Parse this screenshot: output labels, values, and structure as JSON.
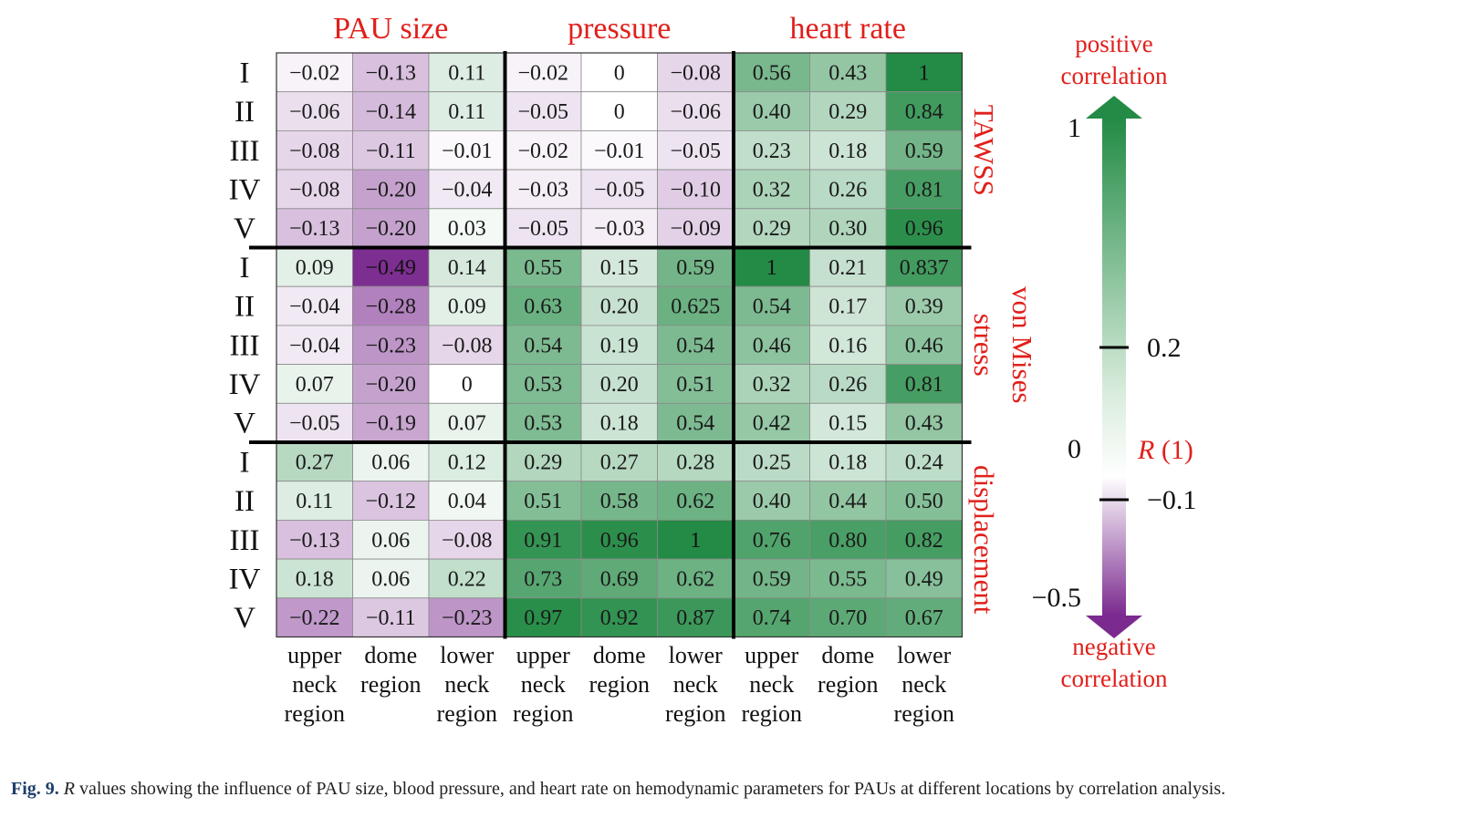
{
  "chart_data": {
    "type": "heatmap",
    "column_groups": [
      "PAU size",
      "pressure",
      "heart rate"
    ],
    "column_labels": [
      [
        "upper",
        "neck",
        "region"
      ],
      [
        "dome",
        "region"
      ],
      [
        "lower",
        "neck",
        "region"
      ],
      [
        "upper",
        "neck",
        "region"
      ],
      [
        "dome",
        "region"
      ],
      [
        "lower",
        "neck",
        "region"
      ],
      [
        "upper",
        "neck",
        "region"
      ],
      [
        "dome",
        "region"
      ],
      [
        "lower",
        "neck",
        "region"
      ]
    ],
    "row_groups": [
      {
        "name_lines": [
          "TAWSS"
        ],
        "rows": [
          "I",
          "II",
          "III",
          "IV",
          "V"
        ]
      },
      {
        "name_lines": [
          "von Mises",
          "stress"
        ],
        "rows": [
          "I",
          "II",
          "III",
          "IV",
          "V"
        ]
      },
      {
        "name_lines": [
          "displacement"
        ],
        "rows": [
          "I",
          "II",
          "III",
          "IV",
          "V"
        ]
      }
    ],
    "values": [
      [
        "−0.02",
        "−0.13",
        "0.11",
        "−0.02",
        "0",
        "−0.08",
        "0.56",
        "0.43",
        "1"
      ],
      [
        "−0.06",
        "−0.14",
        "0.11",
        "−0.05",
        "0",
        "−0.06",
        "0.40",
        "0.29",
        "0.84"
      ],
      [
        "−0.08",
        "−0.11",
        "−0.01",
        "−0.02",
        "−0.01",
        "−0.05",
        "0.23",
        "0.18",
        "0.59"
      ],
      [
        "−0.08",
        "−0.20",
        "−0.04",
        "−0.03",
        "−0.05",
        "−0.10",
        "0.32",
        "0.26",
        "0.81"
      ],
      [
        "−0.13",
        "−0.20",
        "0.03",
        "−0.05",
        "−0.03",
        "−0.09",
        "0.29",
        "0.30",
        "0.96"
      ],
      [
        "0.09",
        "−0.49",
        "0.14",
        "0.55",
        "0.15",
        "0.59",
        "1",
        "0.21",
        "0.837"
      ],
      [
        "−0.04",
        "−0.28",
        "0.09",
        "0.63",
        "0.20",
        "0.625",
        "0.54",
        "0.17",
        "0.39"
      ],
      [
        "−0.04",
        "−0.23",
        "−0.08",
        "0.54",
        "0.19",
        "0.54",
        "0.46",
        "0.16",
        "0.46"
      ],
      [
        "0.07",
        "−0.20",
        "0",
        "0.53",
        "0.20",
        "0.51",
        "0.32",
        "0.26",
        "0.81"
      ],
      [
        "−0.05",
        "−0.19",
        "0.07",
        "0.53",
        "0.18",
        "0.54",
        "0.42",
        "0.15",
        "0.43"
      ],
      [
        "0.27",
        "0.06",
        "0.12",
        "0.29",
        "0.27",
        "0.28",
        "0.25",
        "0.18",
        "0.24"
      ],
      [
        "0.11",
        "−0.12",
        "0.04",
        "0.51",
        "0.58",
        "0.62",
        "0.40",
        "0.44",
        "0.50"
      ],
      [
        "−0.13",
        "0.06",
        "−0.08",
        "0.91",
        "0.96",
        "1",
        "0.76",
        "0.80",
        "0.82"
      ],
      [
        "0.18",
        "0.06",
        "0.22",
        "0.73",
        "0.69",
        "0.62",
        "0.59",
        "0.55",
        "0.49"
      ],
      [
        "−0.22",
        "−0.11",
        "−0.23",
        "0.97",
        "0.92",
        "0.87",
        "0.74",
        "0.70",
        "0.67"
      ]
    ],
    "colorbar": {
      "top_label": [
        "positive",
        "correlation"
      ],
      "bottom_label": [
        "negative",
        "correlation"
      ],
      "title": "R",
      "title_unit": "(1)",
      "ticks": [
        {
          "value": 1,
          "label": "1",
          "side": "left"
        },
        {
          "value": 0.2,
          "label": "0.2",
          "side": "right"
        },
        {
          "value": 0,
          "label": "0",
          "side": "left"
        },
        {
          "value": -0.1,
          "label": "−0.1",
          "side": "right"
        },
        {
          "value": -0.5,
          "label": "−0.5",
          "side": "left"
        }
      ],
      "range": [
        -0.5,
        1
      ],
      "positive_color": "#238b45",
      "negative_color": "#7b2a8f",
      "neutral_color": "#ffffff"
    },
    "label_color": "#e0201b"
  },
  "caption": {
    "label": "Fig. 9.",
    "r_letter": "R",
    "text": " values showing the influence of PAU size, blood pressure, and heart rate on hemodynamic parameters for PAUs at different locations by correlation analysis."
  }
}
